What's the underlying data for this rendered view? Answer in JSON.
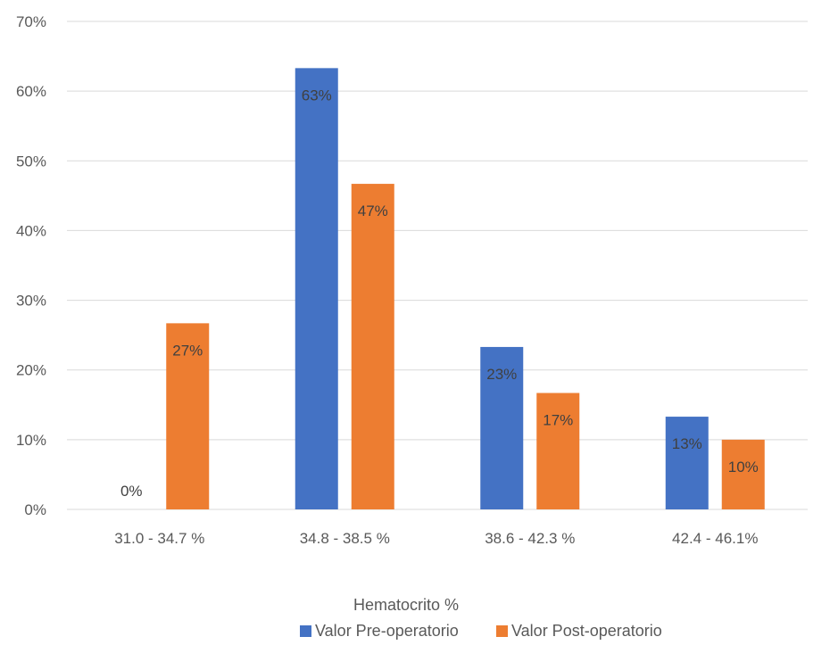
{
  "chart_data": {
    "type": "bar",
    "title": "",
    "xlabel": "Hematocrito %",
    "ylabel": "",
    "categories": [
      "31.0 - 34.7 %",
      "34.8 - 38.5 %",
      "38.6 - 42.3 %",
      "42.4 - 46.1%"
    ],
    "series": [
      {
        "name": "Valor Pre-operatorio",
        "color": "#4472C4",
        "values": [
          0,
          63.3,
          23.3,
          13.3
        ],
        "labels": [
          "0%",
          "63%",
          "23%",
          "13%"
        ]
      },
      {
        "name": "Valor Post-operatorio",
        "color": "#ED7D31",
        "values": [
          26.7,
          46.7,
          16.7,
          10.0
        ],
        "labels": [
          "27%",
          "47%",
          "17%",
          "10%"
        ]
      }
    ],
    "ylim": [
      0,
      70
    ],
    "yticks": [
      0,
      10,
      20,
      30,
      40,
      50,
      60,
      70
    ],
    "ytick_labels": [
      "0%",
      "10%",
      "20%",
      "30%",
      "40%",
      "50%",
      "60%",
      "70%"
    ],
    "grid": true,
    "legend_position": "bottom"
  }
}
